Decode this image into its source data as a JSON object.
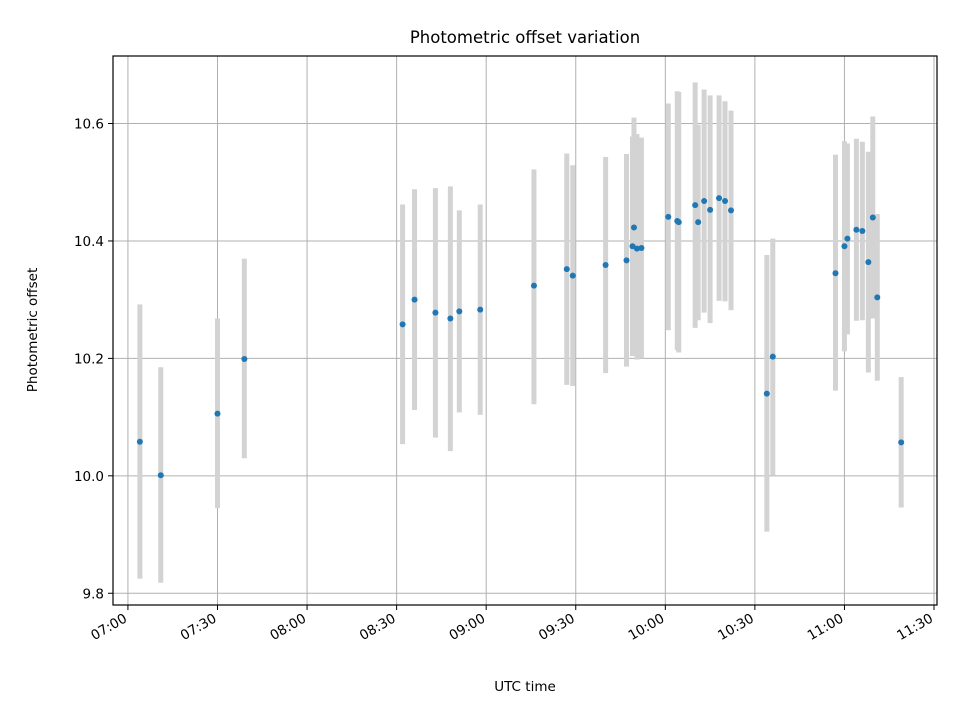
{
  "chart_data": {
    "type": "scatter",
    "title": "Photometric offset variation",
    "xlabel": "UTC time",
    "ylabel": "Photometric offset",
    "x_axis": "time",
    "xlim": [
      "06:55",
      "11:31"
    ],
    "ylim": [
      9.78,
      10.715
    ],
    "x_ticks": [
      "07:00",
      "07:30",
      "08:00",
      "08:30",
      "09:00",
      "09:30",
      "10:00",
      "10:30",
      "11:00",
      "11:30"
    ],
    "y_ticks": [
      9.8,
      10.0,
      10.2,
      10.4,
      10.6
    ],
    "y_tick_labels": [
      "9.8",
      "10.0",
      "10.2",
      "10.4",
      "10.6"
    ],
    "grid": true,
    "colors": {
      "marker": "#1f77b4",
      "errorbar": "#d3d3d3",
      "grid": "#b0b0b0"
    },
    "series": [
      {
        "marker": "dot",
        "error_bars": "vertical",
        "points": [
          {
            "x": "07:04",
            "y": 10.058,
            "lo": 9.825,
            "hi": 10.292
          },
          {
            "x": "07:11",
            "y": 10.001,
            "lo": 9.818,
            "hi": 10.185
          },
          {
            "x": "07:30",
            "y": 10.106,
            "lo": 9.945,
            "hi": 10.268
          },
          {
            "x": "07:39",
            "y": 10.199,
            "lo": 10.03,
            "hi": 10.37
          },
          {
            "x": "08:32",
            "y": 10.258,
            "lo": 10.054,
            "hi": 10.462
          },
          {
            "x": "08:36",
            "y": 10.3,
            "lo": 10.112,
            "hi": 10.488
          },
          {
            "x": "08:43",
            "y": 10.278,
            "lo": 10.065,
            "hi": 10.49
          },
          {
            "x": "08:48",
            "y": 10.268,
            "lo": 10.042,
            "hi": 10.493
          },
          {
            "x": "08:51",
            "y": 10.28,
            "lo": 10.108,
            "hi": 10.452
          },
          {
            "x": "08:58",
            "y": 10.283,
            "lo": 10.104,
            "hi": 10.462
          },
          {
            "x": "09:16",
            "y": 10.324,
            "lo": 10.122,
            "hi": 10.522
          },
          {
            "x": "09:27",
            "y": 10.352,
            "lo": 10.155,
            "hi": 10.549
          },
          {
            "x": "09:29",
            "y": 10.341,
            "lo": 10.153,
            "hi": 10.529
          },
          {
            "x": "09:40",
            "y": 10.359,
            "lo": 10.175,
            "hi": 10.543
          },
          {
            "x": "09:47",
            "y": 10.367,
            "lo": 10.186,
            "hi": 10.548
          },
          {
            "x": "09:49",
            "y": 10.391,
            "lo": 10.204,
            "hi": 10.578
          },
          {
            "x": "09:49.5",
            "y": 10.423,
            "lo": 10.236,
            "hi": 10.61
          },
          {
            "x": "09:50.5",
            "y": 10.387,
            "lo": 10.198,
            "hi": 10.582
          },
          {
            "x": "09:52",
            "y": 10.388,
            "lo": 10.2,
            "hi": 10.576
          },
          {
            "x": "10:01",
            "y": 10.441,
            "lo": 10.248,
            "hi": 10.634
          },
          {
            "x": "10:04",
            "y": 10.434,
            "lo": 10.214,
            "hi": 10.655
          },
          {
            "x": "10:04.5",
            "y": 10.432,
            "lo": 10.21,
            "hi": 10.654
          },
          {
            "x": "10:10",
            "y": 10.461,
            "lo": 10.252,
            "hi": 10.67
          },
          {
            "x": "10:11",
            "y": 10.432,
            "lo": 10.265,
            "hi": 10.598
          },
          {
            "x": "10:13",
            "y": 10.468,
            "lo": 10.278,
            "hi": 10.658
          },
          {
            "x": "10:15",
            "y": 10.453,
            "lo": 10.26,
            "hi": 10.648
          },
          {
            "x": "10:18",
            "y": 10.473,
            "lo": 10.298,
            "hi": 10.648
          },
          {
            "x": "10:20",
            "y": 10.468,
            "lo": 10.297,
            "hi": 10.638
          },
          {
            "x": "10:22",
            "y": 10.452,
            "lo": 10.282,
            "hi": 10.622
          },
          {
            "x": "10:34",
            "y": 10.14,
            "lo": 9.905,
            "hi": 10.376
          },
          {
            "x": "10:36",
            "y": 10.203,
            "lo": 10.001,
            "hi": 10.404
          },
          {
            "x": "10:57",
            "y": 10.345,
            "lo": 10.145,
            "hi": 10.547
          },
          {
            "x": "11:00",
            "y": 10.391,
            "lo": 10.212,
            "hi": 10.57
          },
          {
            "x": "11:01",
            "y": 10.404,
            "lo": 10.241,
            "hi": 10.566
          },
          {
            "x": "11:04",
            "y": 10.419,
            "lo": 10.264,
            "hi": 10.574
          },
          {
            "x": "11:06",
            "y": 10.417,
            "lo": 10.265,
            "hi": 10.569
          },
          {
            "x": "11:08",
            "y": 10.364,
            "lo": 10.176,
            "hi": 10.552
          },
          {
            "x": "11:09.5",
            "y": 10.44,
            "lo": 10.268,
            "hi": 10.612
          },
          {
            "x": "11:11",
            "y": 10.304,
            "lo": 10.162,
            "hi": 10.446
          },
          {
            "x": "11:19",
            "y": 10.057,
            "lo": 9.946,
            "hi": 10.168
          }
        ]
      }
    ]
  }
}
